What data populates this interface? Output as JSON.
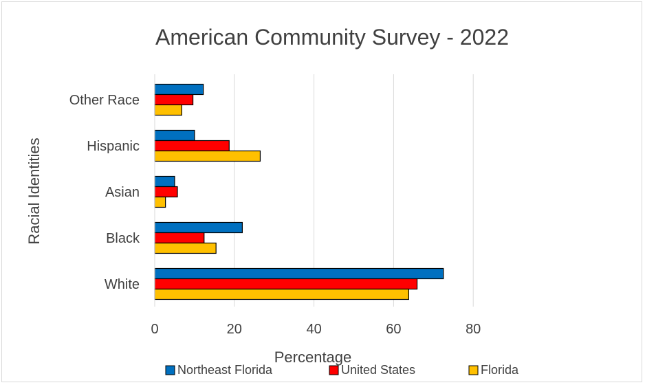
{
  "chart_data": {
    "type": "bar",
    "orientation": "horizontal",
    "title": "American Community Survey - 2022",
    "xlabel": "Percentage",
    "ylabel": "Racial Identities",
    "categories": [
      "White",
      "Black",
      "Asian",
      "Hispanic",
      "Other Race"
    ],
    "series": [
      {
        "name": "Northeast Florida",
        "color": "#0070C0",
        "values": [
          72.5,
          22.0,
          5.0,
          10.0,
          12.2
        ]
      },
      {
        "name": "United States",
        "color": "#FF0000",
        "values": [
          65.9,
          12.4,
          5.7,
          18.7,
          9.6
        ]
      },
      {
        "name": "Florida",
        "color": "#FFC000",
        "values": [
          63.8,
          15.4,
          2.7,
          26.5,
          6.8
        ]
      }
    ],
    "xlim": [
      0,
      100
    ],
    "xticks": [
      0,
      20,
      40,
      60,
      80
    ],
    "grid": "vertical",
    "legend_position": "bottom"
  }
}
